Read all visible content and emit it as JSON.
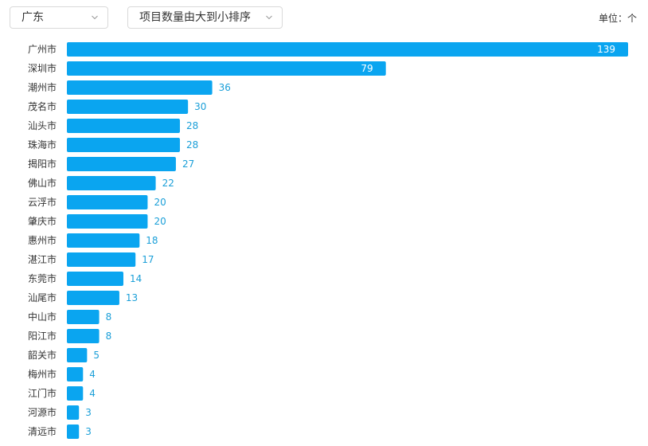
{
  "filters": {
    "province": {
      "value": "广东",
      "icon": "chevron-down-icon"
    },
    "sort": {
      "value": "项目数量由大到小排序",
      "icon": "chevron-down-icon"
    }
  },
  "unit_label": "单位：个",
  "colors": {
    "bar": "#0aa5f0",
    "label_outside": "#1a9fd8",
    "label_inside": "#ffffff"
  },
  "chart_data": {
    "type": "bar",
    "orientation": "horizontal",
    "categories": [
      "广州市",
      "深圳市",
      "潮州市",
      "茂名市",
      "汕头市",
      "珠海市",
      "揭阳市",
      "佛山市",
      "云浮市",
      "肇庆市",
      "惠州市",
      "湛江市",
      "东莞市",
      "汕尾市",
      "中山市",
      "阳江市",
      "韶关市",
      "梅州市",
      "江门市",
      "河源市",
      "清远市"
    ],
    "values": [
      139,
      79,
      36,
      30,
      28,
      28,
      27,
      22,
      20,
      20,
      18,
      17,
      14,
      13,
      8,
      8,
      5,
      4,
      4,
      3,
      3
    ],
    "xlim": [
      0,
      139
    ],
    "grid": false,
    "legend": "none"
  }
}
